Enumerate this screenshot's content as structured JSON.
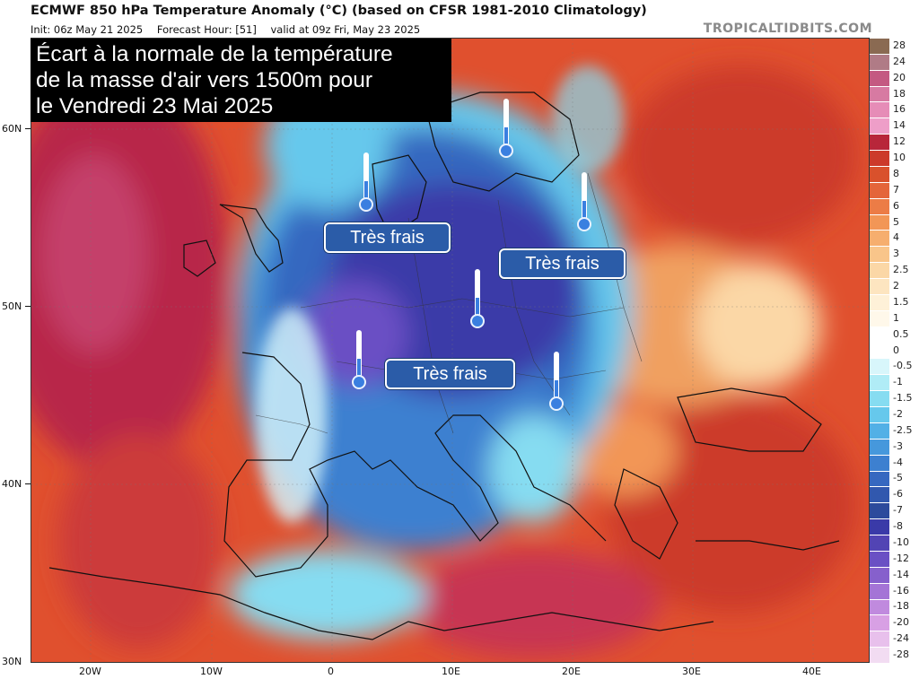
{
  "header": {
    "title": "ECMWF 850 hPa Temperature Anomaly (°C) (based on CFSR 1981-2010 Climatology)",
    "init": "Init: 06z May 21 2025",
    "forecast_hour": "Forecast Hour: [51]",
    "valid": "valid at 09z Fri, May 23 2025",
    "brand": "TROPICALTIDBITS.COM"
  },
  "overlay": {
    "lines": [
      "Écart à la normale de la température",
      "de la masse d'air vers 1500m pour",
      "le Vendredi 23 Mai 2025"
    ]
  },
  "badges": [
    {
      "text": "Très frais"
    },
    {
      "text": "Très frais"
    },
    {
      "text": "Très frais"
    }
  ],
  "axes": {
    "lat_labels": [
      "60N",
      "50N",
      "40N",
      "30N"
    ],
    "lon_labels": [
      "20W",
      "10W",
      "0",
      "10E",
      "20E",
      "30E",
      "40E"
    ]
  },
  "colorbar": {
    "labels": [
      "28",
      "24",
      "20",
      "18",
      "16",
      "14",
      "12",
      "10",
      "8",
      "7",
      "6",
      "5",
      "4",
      "3",
      "2.5",
      "2",
      "1.5",
      "1",
      "0.5",
      "0",
      "-0.5",
      "-1",
      "-1.5",
      "-2",
      "-2.5",
      "-3",
      "-4",
      "-5",
      "-6",
      "-7",
      "-8",
      "-10",
      "-12",
      "-14",
      "-16",
      "-18",
      "-20",
      "-24",
      "-28"
    ],
    "colors": [
      "#8a6a52",
      "#b07b86",
      "#c45a82",
      "#d77aa2",
      "#e68cb7",
      "#ee9ec8",
      "#b8263a",
      "#cc3a2a",
      "#d9512c",
      "#e4653a",
      "#ec7c46",
      "#f29656",
      "#f6ae6e",
      "#f9c58a",
      "#fbd7a6",
      "#fde5c0",
      "#fef1d8",
      "#fff8ea",
      "#ffffff",
      "#ffffff",
      "#d8f6fb",
      "#b0ecf6",
      "#86dcf1",
      "#66c8ec",
      "#52b0e6",
      "#4698dc",
      "#3d80d0",
      "#3668c0",
      "#3158ae",
      "#2c4a9c",
      "#3a3aa8",
      "#5244b4",
      "#6a50c4",
      "#8660cc",
      "#a474d6",
      "#c08ade",
      "#d8a0e4",
      "#e8c0ec",
      "#f2dcf2"
    ]
  }
}
